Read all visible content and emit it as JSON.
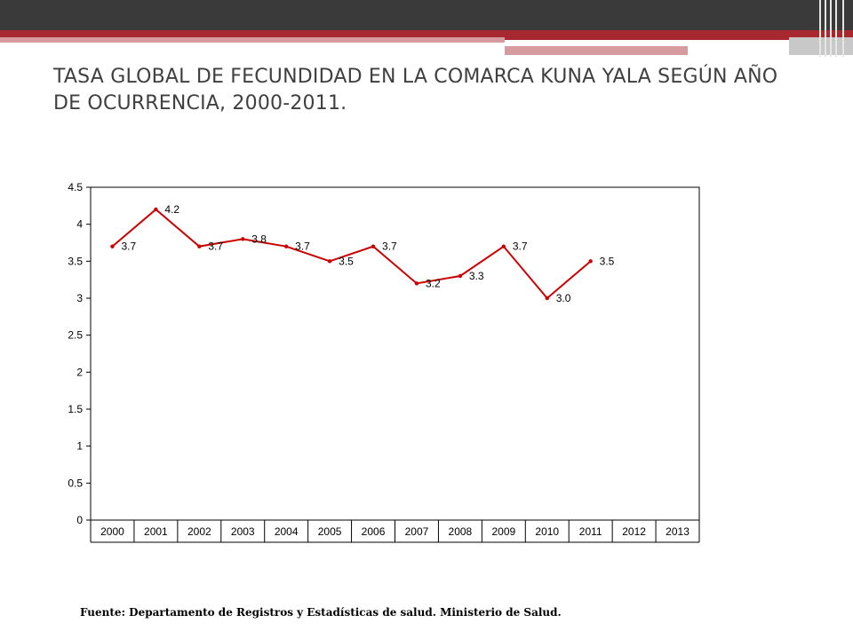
{
  "slide": {
    "title": "TASA GLOBAL DE FECUNDIDAD EN LA COMARCA KUNA YALA SEGÚN AÑO DE OCURRENCIA, 2000-2011.",
    "source": "Fuente: Departamento de Registros y Estadísticas de salud. Ministerio de Salud.",
    "colors": {
      "header_dark": "#3a3a3a",
      "accent_red": "#a8282f",
      "accent_pink": "#d59b9e"
    }
  },
  "chart_data": {
    "type": "line",
    "categories": [
      "2000",
      "2001",
      "2002",
      "2003",
      "2004",
      "2005",
      "2006",
      "2007",
      "2008",
      "2009",
      "2010",
      "2011",
      "2012",
      "2013"
    ],
    "series": [
      {
        "values": [
          3.7,
          4.2,
          3.7,
          3.8,
          3.7,
          3.5,
          3.7,
          3.2,
          3.3,
          3.7,
          3.0,
          3.5,
          null,
          null
        ],
        "color": "#cc0000"
      }
    ],
    "data_labels": [
      "3.7",
      "4.2",
      "3.7",
      "3.8",
      "3.7",
      "3.5",
      "3.7",
      "3.2",
      "3.3",
      "3.7",
      "3.0",
      "3.5"
    ],
    "y_ticks": [
      "0",
      "0.5",
      "1",
      "1.5",
      "2",
      "2.5",
      "3",
      "3.5",
      "4",
      "4.5"
    ],
    "ylim": [
      0,
      4.5
    ],
    "grid": false,
    "legend": "none",
    "title": "",
    "xlabel": "",
    "ylabel": ""
  }
}
